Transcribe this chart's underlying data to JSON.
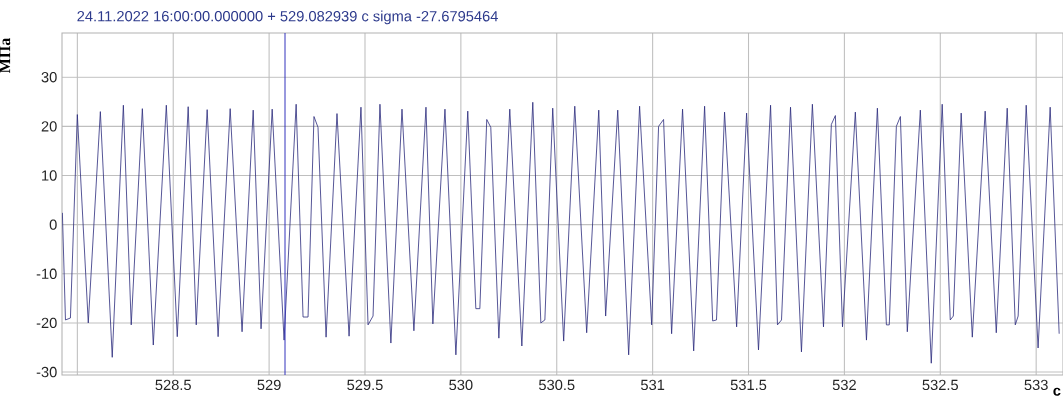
{
  "chart_data": {
    "type": "line",
    "title": "24.11.2022 16:00:00.000000 +  529.082939 c    sigma -27.6795464",
    "xlabel": "с",
    "ylabel": "МПа",
    "xlim": [
      527.92,
      533.14
    ],
    "ylim": [
      -30.6,
      39
    ],
    "xticks": [
      {
        "value": 528,
        "label": null
      },
      528.5,
      529,
      529.5,
      530,
      530.5,
      531,
      531.5,
      532,
      532.5,
      533
    ],
    "yticks": [
      -30,
      -20,
      -10,
      0,
      10,
      20,
      30
    ],
    "grid": true,
    "ref_lines": [
      {
        "axis": "x",
        "value": 529.082939,
        "color": "#2424b8"
      }
    ],
    "series": [
      {
        "color": "#2b2b7c",
        "x": [
          527.922,
          527.938,
          527.964,
          528.0,
          528.057,
          528.12,
          528.182,
          528.24,
          528.281,
          528.339,
          528.396,
          528.464,
          528.521,
          528.578,
          528.62,
          528.677,
          528.734,
          528.797,
          528.859,
          528.917,
          528.958,
          529.016,
          529.078,
          529.141,
          529.177,
          529.203,
          529.234,
          529.255,
          529.297,
          529.354,
          529.417,
          529.479,
          529.516,
          529.542,
          529.578,
          529.635,
          529.693,
          529.755,
          529.818,
          529.854,
          529.917,
          529.974,
          530.036,
          530.078,
          530.099,
          530.135,
          530.156,
          530.198,
          530.255,
          530.318,
          530.375,
          530.417,
          530.438,
          530.479,
          530.536,
          530.594,
          530.656,
          530.719,
          530.755,
          530.818,
          530.875,
          530.932,
          530.995,
          531.031,
          531.057,
          531.099,
          531.156,
          531.214,
          531.271,
          531.313,
          531.333,
          531.375,
          531.438,
          531.49,
          531.552,
          531.615,
          531.651,
          531.672,
          531.719,
          531.776,
          531.833,
          531.891,
          531.932,
          531.953,
          531.99,
          532.057,
          532.115,
          532.172,
          532.219,
          532.234,
          532.271,
          532.292,
          532.328,
          532.396,
          532.453,
          532.51,
          532.552,
          532.568,
          532.609,
          532.667,
          532.734,
          532.792,
          532.849,
          532.891,
          532.906,
          532.948,
          533.01,
          533.073,
          533.12
        ],
        "values": [
          2.4,
          -19.4,
          -19.0,
          22.4,
          -20.0,
          23.0,
          -27.0,
          24.3,
          -20.4,
          23.6,
          -24.5,
          24.3,
          -22.8,
          24.0,
          -20.4,
          23.4,
          -22.8,
          23.6,
          -21.8,
          23.3,
          -21.2,
          23.5,
          -23.5,
          24.5,
          -18.8,
          -18.8,
          22.0,
          19.8,
          -22.9,
          22.6,
          -22.7,
          23.9,
          -20.4,
          -18.6,
          24.5,
          -24.1,
          23.5,
          -21.6,
          23.9,
          -20.2,
          23.5,
          -26.5,
          23.1,
          -17.1,
          -17.1,
          21.4,
          19.8,
          -23.1,
          23.5,
          -24.7,
          24.9,
          -20.0,
          -19.4,
          23.7,
          -23.7,
          24.1,
          -22.0,
          23.3,
          -18.6,
          23.3,
          -26.5,
          24.1,
          -20.4,
          20.0,
          21.4,
          -22.2,
          23.5,
          -25.7,
          24.1,
          -19.6,
          -19.4,
          22.9,
          -20.8,
          22.7,
          -25.5,
          24.3,
          -20.4,
          -19.4,
          23.9,
          -25.9,
          24.5,
          -20.8,
          20.4,
          22.2,
          -20.8,
          22.9,
          -23.5,
          23.7,
          -20.4,
          -20.4,
          20.0,
          22.0,
          -21.8,
          23.3,
          -28.2,
          24.5,
          -19.4,
          -18.6,
          22.7,
          -22.9,
          23.1,
          -22.0,
          23.7,
          -20.4,
          -18.6,
          24.3,
          -25.1,
          23.9,
          -22.2
        ]
      }
    ]
  }
}
